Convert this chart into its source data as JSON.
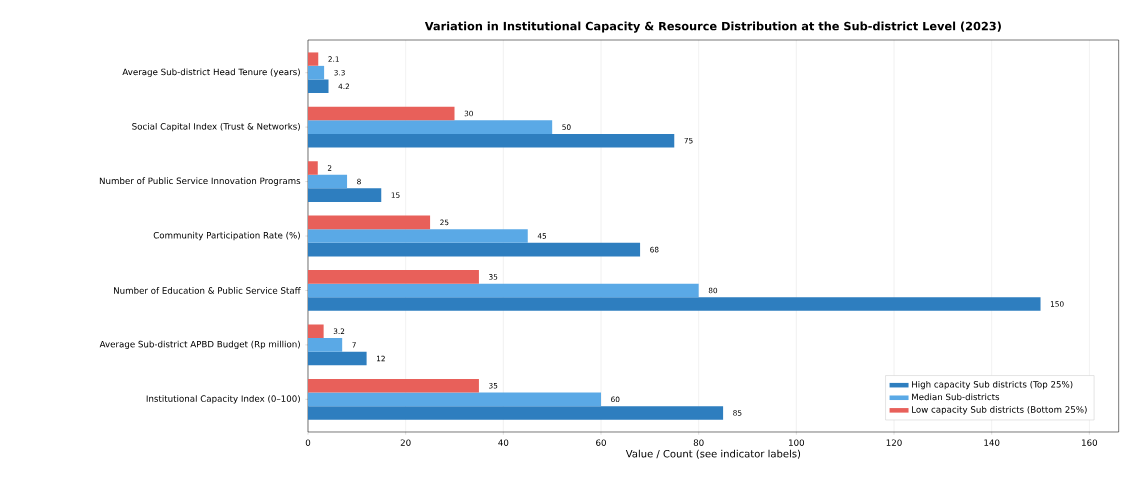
{
  "chart_data": {
    "type": "bar",
    "orientation": "horizontal",
    "title": "Variation in Institutional Capacity & Resource Distribution at the Sub-district Level (2023)",
    "xlabel": "Value / Count (see indicator labels)",
    "categories": [
      "Average Sub-district Head Tenure (years)",
      "Social Capital Index (Trust & Networks)",
      "Number of Public Service Innovation Programs",
      "Community Participation Rate (%)",
      "Number of Education & Public Service Staff",
      "Average Sub-district APBD Budget (Rp million)",
      "Institutional Capacity Index (0–100)"
    ],
    "series": [
      {
        "name": "High capacity Sub districts (Top 25%)",
        "color": "#2e7ebf",
        "values": [
          4.2,
          75,
          15,
          68,
          150,
          12,
          85
        ]
      },
      {
        "name": "Median Sub-districts",
        "color": "#5aa9e6",
        "values": [
          3.3,
          50,
          8,
          45,
          80,
          7,
          60
        ]
      },
      {
        "name": "Low capacity Sub districts (Bottom 25%)",
        "color": "#e8605a",
        "values": [
          2.1,
          30,
          2,
          25,
          35,
          3.2,
          35
        ]
      }
    ],
    "xlim": [
      0,
      166
    ],
    "xticks": [
      0,
      20,
      40,
      60,
      80,
      100,
      120,
      140,
      160
    ],
    "grid": "x",
    "legend": "bottom right",
    "data_labels": true
  }
}
